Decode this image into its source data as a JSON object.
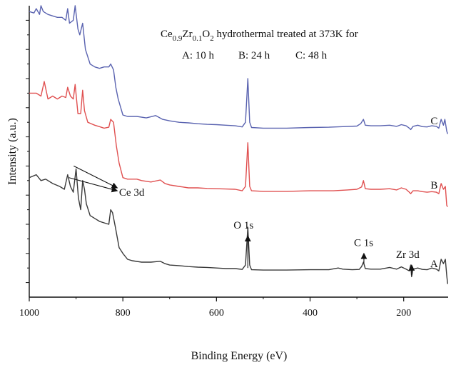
{
  "chart_data": {
    "type": "line",
    "title_parts": {
      "ce": "Ce",
      "ce_sub": "0.9",
      "zr": "Zr",
      "zr_sub": "0.1",
      "o": "O",
      "o_sub": "2",
      "rest": " hydrothermal treated at 373K for"
    },
    "legend_line": [
      "A: 10 h",
      "B: 24 h",
      "C: 48 h"
    ],
    "xlabel": "Binding Energy (eV)",
    "ylabel": "Intensity (a.u.)",
    "xlim": [
      1000,
      105
    ],
    "ylim": [
      0,
      100
    ],
    "x_ticks": [
      1000,
      800,
      600,
      400,
      200
    ],
    "y_ticks_unlabeled": [
      5,
      10,
      15,
      20,
      25,
      30,
      35,
      40,
      45,
      50,
      55,
      60,
      65,
      70,
      75,
      80,
      85,
      90,
      95
    ],
    "grid": false,
    "colors": {
      "A": "#3a3a3a",
      "B": "#e05050",
      "C": "#5a63b0",
      "axis": "#111111"
    },
    "annotations": [
      {
        "text": "Ce 3d",
        "x": 810,
        "y": 39
      },
      {
        "text": "O 1s",
        "x": 533,
        "y": 22
      },
      {
        "text": "C 1s",
        "x": 285,
        "y": 14
      },
      {
        "text": "Zr 3d",
        "x": 183,
        "y": 11
      }
    ],
    "series": [
      {
        "name": "A",
        "values": [
          [
            1000,
            41
          ],
          [
            985,
            42
          ],
          [
            975,
            40
          ],
          [
            965,
            40.5
          ],
          [
            950,
            39
          ],
          [
            935,
            38
          ],
          [
            925,
            37
          ],
          [
            918,
            42
          ],
          [
            912,
            38
          ],
          [
            906,
            36
          ],
          [
            900,
            44
          ],
          [
            895,
            34
          ],
          [
            890,
            30
          ],
          [
            886,
            40
          ],
          [
            882,
            37
          ],
          [
            878,
            32
          ],
          [
            870,
            28
          ],
          [
            860,
            27
          ],
          [
            850,
            26
          ],
          [
            840,
            25.5
          ],
          [
            830,
            25
          ],
          [
            826,
            30
          ],
          [
            822,
            29
          ],
          [
            816,
            24
          ],
          [
            808,
            17
          ],
          [
            800,
            15
          ],
          [
            790,
            13
          ],
          [
            780,
            12.5
          ],
          [
            760,
            12
          ],
          [
            740,
            12
          ],
          [
            720,
            12.3
          ],
          [
            710,
            11.5
          ],
          [
            700,
            11
          ],
          [
            680,
            10.8
          ],
          [
            660,
            10.5
          ],
          [
            640,
            10.3
          ],
          [
            620,
            10.2
          ],
          [
            600,
            10
          ],
          [
            580,
            9.8
          ],
          [
            560,
            9.8
          ],
          [
            545,
            9.5
          ],
          [
            538,
            11
          ],
          [
            533,
            24
          ],
          [
            529,
            11
          ],
          [
            525,
            9.4
          ],
          [
            500,
            9.3
          ],
          [
            450,
            9.3
          ],
          [
            400,
            9.4
          ],
          [
            360,
            9.4
          ],
          [
            340,
            10
          ],
          [
            330,
            9.6
          ],
          [
            310,
            9.4
          ],
          [
            295,
            9.5
          ],
          [
            290,
            10.5
          ],
          [
            286,
            12
          ],
          [
            282,
            9.8
          ],
          [
            270,
            9.6
          ],
          [
            250,
            9.6
          ],
          [
            230,
            10.2
          ],
          [
            215,
            9.6
          ],
          [
            205,
            10.4
          ],
          [
            195,
            9.6
          ],
          [
            188,
            9
          ],
          [
            185,
            11
          ],
          [
            183,
            7
          ],
          [
            180,
            9.6
          ],
          [
            170,
            10
          ],
          [
            160,
            9.5
          ],
          [
            150,
            9.4
          ],
          [
            140,
            10
          ],
          [
            130,
            9.6
          ],
          [
            125,
            9
          ],
          [
            120,
            13
          ],
          [
            115,
            11.5
          ],
          [
            111,
            13
          ],
          [
            108,
            7.5
          ],
          [
            106,
            4.5
          ]
        ],
        "label": "A"
      },
      {
        "name": "B",
        "values": [
          [
            1000,
            70
          ],
          [
            985,
            70
          ],
          [
            975,
            69
          ],
          [
            968,
            74
          ],
          [
            960,
            68
          ],
          [
            950,
            69
          ],
          [
            940,
            68
          ],
          [
            930,
            69
          ],
          [
            922,
            68.5
          ],
          [
            918,
            72
          ],
          [
            912,
            69
          ],
          [
            906,
            68
          ],
          [
            902,
            73
          ],
          [
            896,
            63
          ],
          [
            890,
            63
          ],
          [
            886,
            71
          ],
          [
            882,
            64
          ],
          [
            875,
            60
          ],
          [
            860,
            59
          ],
          [
            850,
            58.5
          ],
          [
            840,
            58
          ],
          [
            830,
            58.3
          ],
          [
            826,
            61
          ],
          [
            820,
            60
          ],
          [
            814,
            52
          ],
          [
            808,
            46
          ],
          [
            800,
            41
          ],
          [
            790,
            40.5
          ],
          [
            780,
            40.5
          ],
          [
            770,
            40.5
          ],
          [
            760,
            40
          ],
          [
            740,
            39.5
          ],
          [
            720,
            40.2
          ],
          [
            710,
            39
          ],
          [
            700,
            38.5
          ],
          [
            680,
            38
          ],
          [
            660,
            37.5
          ],
          [
            640,
            37.5
          ],
          [
            620,
            37.3
          ],
          [
            600,
            37.2
          ],
          [
            580,
            37.1
          ],
          [
            560,
            37
          ],
          [
            545,
            36.5
          ],
          [
            538,
            38
          ],
          [
            533,
            53
          ],
          [
            529,
            38
          ],
          [
            525,
            36.5
          ],
          [
            500,
            36.3
          ],
          [
            450,
            36.3
          ],
          [
            400,
            36.5
          ],
          [
            350,
            36.5
          ],
          [
            320,
            36.8
          ],
          [
            300,
            37
          ],
          [
            290,
            37.8
          ],
          [
            286,
            40
          ],
          [
            282,
            37.2
          ],
          [
            270,
            37
          ],
          [
            250,
            37
          ],
          [
            230,
            37.2
          ],
          [
            215,
            36.8
          ],
          [
            205,
            37.5
          ],
          [
            195,
            37
          ],
          [
            188,
            36
          ],
          [
            185,
            35.5
          ],
          [
            180,
            36.5
          ],
          [
            170,
            36.5
          ],
          [
            160,
            36.2
          ],
          [
            150,
            36
          ],
          [
            140,
            36.2
          ],
          [
            130,
            36
          ],
          [
            125,
            35.5
          ],
          [
            120,
            39
          ],
          [
            115,
            37
          ],
          [
            111,
            38
          ],
          [
            108,
            31.5
          ],
          [
            106,
            31
          ]
        ],
        "label": "B"
      },
      {
        "name": "C",
        "values": [
          [
            1000,
            98
          ],
          [
            990,
            97.5
          ],
          [
            985,
            99
          ],
          [
            978,
            97
          ],
          [
            975,
            100
          ],
          [
            970,
            98
          ],
          [
            960,
            97
          ],
          [
            950,
            96.5
          ],
          [
            940,
            96
          ],
          [
            930,
            96
          ],
          [
            922,
            95
          ],
          [
            918,
            99
          ],
          [
            914,
            94
          ],
          [
            906,
            95
          ],
          [
            902,
            100
          ],
          [
            896,
            92
          ],
          [
            892,
            90
          ],
          [
            886,
            94
          ],
          [
            880,
            85
          ],
          [
            870,
            80
          ],
          [
            860,
            79
          ],
          [
            850,
            78.5
          ],
          [
            840,
            79
          ],
          [
            830,
            79
          ],
          [
            826,
            80
          ],
          [
            820,
            78
          ],
          [
            815,
            72
          ],
          [
            810,
            68
          ],
          [
            800,
            62.5
          ],
          [
            790,
            62
          ],
          [
            770,
            62
          ],
          [
            750,
            61.5
          ],
          [
            730,
            62.3
          ],
          [
            715,
            61
          ],
          [
            700,
            60.5
          ],
          [
            680,
            60
          ],
          [
            660,
            59.8
          ],
          [
            640,
            59.5
          ],
          [
            620,
            59.3
          ],
          [
            600,
            59.2
          ],
          [
            580,
            59
          ],
          [
            560,
            58.8
          ],
          [
            545,
            58.4
          ],
          [
            538,
            60
          ],
          [
            533,
            75
          ],
          [
            529,
            60
          ],
          [
            525,
            58.2
          ],
          [
            500,
            58
          ],
          [
            450,
            58
          ],
          [
            400,
            58.2
          ],
          [
            360,
            58.3
          ],
          [
            330,
            58.5
          ],
          [
            300,
            58.7
          ],
          [
            292,
            59.5
          ],
          [
            286,
            61
          ],
          [
            282,
            59
          ],
          [
            270,
            58.8
          ],
          [
            250,
            58.8
          ],
          [
            230,
            59
          ],
          [
            215,
            58.6
          ],
          [
            205,
            59.2
          ],
          [
            195,
            58.8
          ],
          [
            188,
            58
          ],
          [
            185,
            57.5
          ],
          [
            180,
            58.6
          ],
          [
            170,
            59
          ],
          [
            160,
            58.5
          ],
          [
            150,
            58.4
          ],
          [
            140,
            58.8
          ],
          [
            130,
            58.6
          ],
          [
            125,
            58
          ],
          [
            120,
            61
          ],
          [
            115,
            59
          ],
          [
            112,
            61
          ],
          [
            108,
            57
          ],
          [
            106,
            56
          ]
        ],
        "label": "C"
      }
    ]
  }
}
